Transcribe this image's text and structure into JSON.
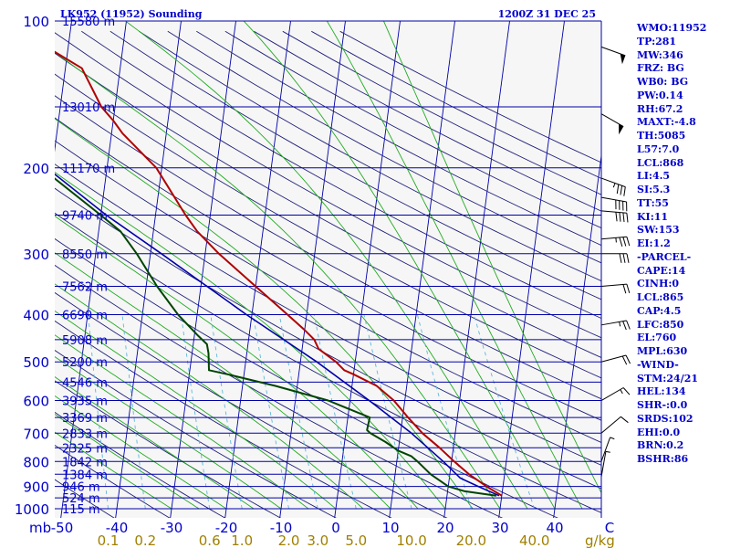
{
  "header": {
    "station": "LK952 (11952) Sounding",
    "time": "1200Z 31 DEC 25"
  },
  "axis": {
    "x_unit_label": "mb",
    "mixing_ratio_unit": "g/kg"
  },
  "chart_data": {
    "type": "skew-t",
    "title": "LK952 (11952) Sounding",
    "pressure_range_hpa": [
      1000,
      100
    ],
    "pressure_scale": "log",
    "temperature_range_c": [
      -50,
      50
    ],
    "pressure_levels": [
      1000,
      900,
      800,
      700,
      600,
      500,
      400,
      300,
      200,
      100
    ],
    "pressure_labels": [
      "1000",
      "900",
      "800",
      "700",
      "600",
      "500",
      "400",
      "300",
      "200",
      "100"
    ],
    "height_levels": [
      {
        "p": 100,
        "label": "15580 m"
      },
      {
        "p": 150,
        "label": "13010 m"
      },
      {
        "p": 200,
        "label": "11170 m"
      },
      {
        "p": 250,
        "label": "9740 m"
      },
      {
        "p": 300,
        "label": "8550 m"
      },
      {
        "p": 350,
        "label": "7562 m"
      },
      {
        "p": 400,
        "label": "6690 m"
      },
      {
        "p": 450,
        "label": "5908 m"
      },
      {
        "p": 500,
        "label": "5200 m"
      },
      {
        "p": 550,
        "label": "4546 m"
      },
      {
        "p": 600,
        "label": "3935 m"
      },
      {
        "p": 650,
        "label": "3369 m"
      },
      {
        "p": 700,
        "label": "2833 m"
      },
      {
        "p": 750,
        "label": "2325 m"
      },
      {
        "p": 800,
        "label": "1842 m"
      },
      {
        "p": 850,
        "label": "1384 m"
      },
      {
        "p": 900,
        "label": "946 m"
      },
      {
        "p": 950,
        "label": "524 m"
      },
      {
        "p": 1000,
        "label": "115 m"
      }
    ],
    "temperature_ticks": [
      {
        "t": -50,
        "label": "-50"
      },
      {
        "t": -40,
        "label": "-40"
      },
      {
        "t": -30,
        "label": "-30"
      },
      {
        "t": -20,
        "label": "-20"
      },
      {
        "t": -10,
        "label": "-10"
      },
      {
        "t": 0,
        "label": "0"
      },
      {
        "t": 10,
        "label": "10"
      },
      {
        "t": 20,
        "label": "20"
      },
      {
        "t": 30,
        "label": "30"
      },
      {
        "t": 40,
        "label": "40"
      },
      {
        "t": 50,
        "label": "C"
      }
    ],
    "mixing_ratio_lines": [
      {
        "w": 0.1,
        "label": "0.1"
      },
      {
        "w": 0.2,
        "label": "0.2"
      },
      {
        "w": 0.6,
        "label": "0.6"
      },
      {
        "w": 1.0,
        "label": "1.0"
      },
      {
        "w": 2.0,
        "label": "2.0"
      },
      {
        "w": 3.0,
        "label": "3.0"
      },
      {
        "w": 5.0,
        "label": "5.0"
      },
      {
        "w": 10.0,
        "label": "10.0"
      },
      {
        "w": 20.0,
        "label": "20.0"
      },
      {
        "w": 40.0,
        "label": "40.0"
      }
    ],
    "temperature_profile": [
      {
        "p": 940,
        "t": 30.0
      },
      {
        "p": 900,
        "t": 27.0
      },
      {
        "p": 850,
        "t": 23.5
      },
      {
        "p": 800,
        "t": 20.5
      },
      {
        "p": 750,
        "t": 17.5
      },
      {
        "p": 700,
        "t": 14.0
      },
      {
        "p": 650,
        "t": 11.0
      },
      {
        "p": 600,
        "t": 8.0
      },
      {
        "p": 560,
        "t": 4.5
      },
      {
        "p": 530,
        "t": 0.0
      },
      {
        "p": 520,
        "t": -1.8
      },
      {
        "p": 500,
        "t": -3.5
      },
      {
        "p": 470,
        "t": -7.0
      },
      {
        "p": 450,
        "t": -8.0
      },
      {
        "p": 430,
        "t": -10.0
      },
      {
        "p": 400,
        "t": -13.5
      },
      {
        "p": 350,
        "t": -20.0
      },
      {
        "p": 300,
        "t": -27.5
      },
      {
        "p": 270,
        "t": -32.0
      },
      {
        "p": 250,
        "t": -34.5
      },
      {
        "p": 200,
        "t": -41.0
      },
      {
        "p": 170,
        "t": -48.0
      },
      {
        "p": 160,
        "t": -50.0
      },
      {
        "p": 150,
        "t": -52.5
      },
      {
        "p": 125,
        "t": -57.0
      },
      {
        "p": 113,
        "t": -64.0
      },
      {
        "p": 100,
        "t": -64.5
      }
    ],
    "dewpoint_profile": [
      {
        "p": 940,
        "t": 29.0
      },
      {
        "p": 920,
        "t": 23.0
      },
      {
        "p": 900,
        "t": 20.0
      },
      {
        "p": 850,
        "t": 16.5
      },
      {
        "p": 800,
        "t": 13.8
      },
      {
        "p": 780,
        "t": 12.5
      },
      {
        "p": 760,
        "t": 10.0
      },
      {
        "p": 730,
        "t": 7.5
      },
      {
        "p": 700,
        "t": 4.5
      },
      {
        "p": 690,
        "t": 3.8
      },
      {
        "p": 650,
        "t": 4.0
      },
      {
        "p": 600,
        "t": -4.0
      },
      {
        "p": 560,
        "t": -14.0
      },
      {
        "p": 530,
        "t": -23.0
      },
      {
        "p": 520,
        "t": -26.5
      },
      {
        "p": 480,
        "t": -27.0
      },
      {
        "p": 460,
        "t": -27.5
      },
      {
        "p": 440,
        "t": -29.5
      },
      {
        "p": 400,
        "t": -33.5
      },
      {
        "p": 350,
        "t": -38.0
      },
      {
        "p": 300,
        "t": -42.5
      },
      {
        "p": 270,
        "t": -46.0
      },
      {
        "p": 250,
        "t": -50.0
      },
      {
        "p": 200,
        "t": -62.0
      },
      {
        "p": 150,
        "t": -73.5
      },
      {
        "p": 125,
        "t": -80.0
      },
      {
        "p": 100,
        "t": -85.0
      }
    ],
    "parcel_profile": [
      {
        "p": 940,
        "t": 29.5
      },
      {
        "p": 900,
        "t": 25.5
      },
      {
        "p": 865,
        "t": 22.0
      },
      {
        "p": 800,
        "t": 18.5
      },
      {
        "p": 700,
        "t": 12.0
      },
      {
        "p": 600,
        "t": 3.5
      },
      {
        "p": 500,
        "t": -7.0
      },
      {
        "p": 400,
        "t": -21.0
      },
      {
        "p": 300,
        "t": -38.0
      },
      {
        "p": 250,
        "t": -49.0
      },
      {
        "p": 200,
        "t": -61.0
      },
      {
        "p": 150,
        "t": -76.0
      },
      {
        "p": 100,
        "t": -96.0
      }
    ],
    "wind_barbs": [
      {
        "p": 113,
        "dir": 290,
        "kt": 50
      },
      {
        "p": 155,
        "dir": 300,
        "kt": 50
      },
      {
        "p": 210,
        "dir": 290,
        "kt": 35
      },
      {
        "p": 230,
        "dir": 280,
        "kt": 40
      },
      {
        "p": 245,
        "dir": 275,
        "kt": 40
      },
      {
        "p": 280,
        "dir": 265,
        "kt": 35
      },
      {
        "p": 300,
        "dir": 270,
        "kt": 30
      },
      {
        "p": 350,
        "dir": 265,
        "kt": 20
      },
      {
        "p": 420,
        "dir": 260,
        "kt": 25
      },
      {
        "p": 500,
        "dir": 255,
        "kt": 20
      },
      {
        "p": 600,
        "dir": 240,
        "kt": 15
      },
      {
        "p": 700,
        "dir": 230,
        "kt": 10
      },
      {
        "p": 800,
        "dir": 200,
        "kt": 5
      },
      {
        "p": 860,
        "dir": 190,
        "kt": 5
      }
    ]
  },
  "panel": {
    "items": [
      "WMO:11952",
      "TP:281",
      "MW:346",
      "FRZ: BG",
      "WB0: BG",
      "PW:0.14",
      "RH:67.2",
      "MAXT:-4.8",
      "TH:5085",
      "L57:7.0",
      "LCL:868",
      "LI:4.5",
      "SI:5.3",
      "TT:55",
      "KI:11",
      "SW:153",
      "EI:1.2",
      "-PARCEL-",
      "CAPE:14",
      "CINH:0",
      "LCL:865",
      "CAP:4.5",
      "LFC:850",
      "EL:760",
      "MPL:630",
      "-WIND-",
      "STM:24/21",
      "HEL:134",
      "SHR-:0.0",
      "SRDS:102",
      "EHI:0.0",
      "BRN:0.2",
      "BSHR:86"
    ]
  },
  "colors": {
    "background": "#ffffff",
    "pressure_lines": "#0000aa",
    "dry_adiabats": "#1f1f7a",
    "moist_adiabats": "#22aa22",
    "mixing_ratio": "#5fb8d8",
    "temperature": "#b00000",
    "dewpoint": "#004400",
    "parcel": "#0000aa",
    "labels": "#0000cc",
    "mixing_labels": "#a08000"
  }
}
